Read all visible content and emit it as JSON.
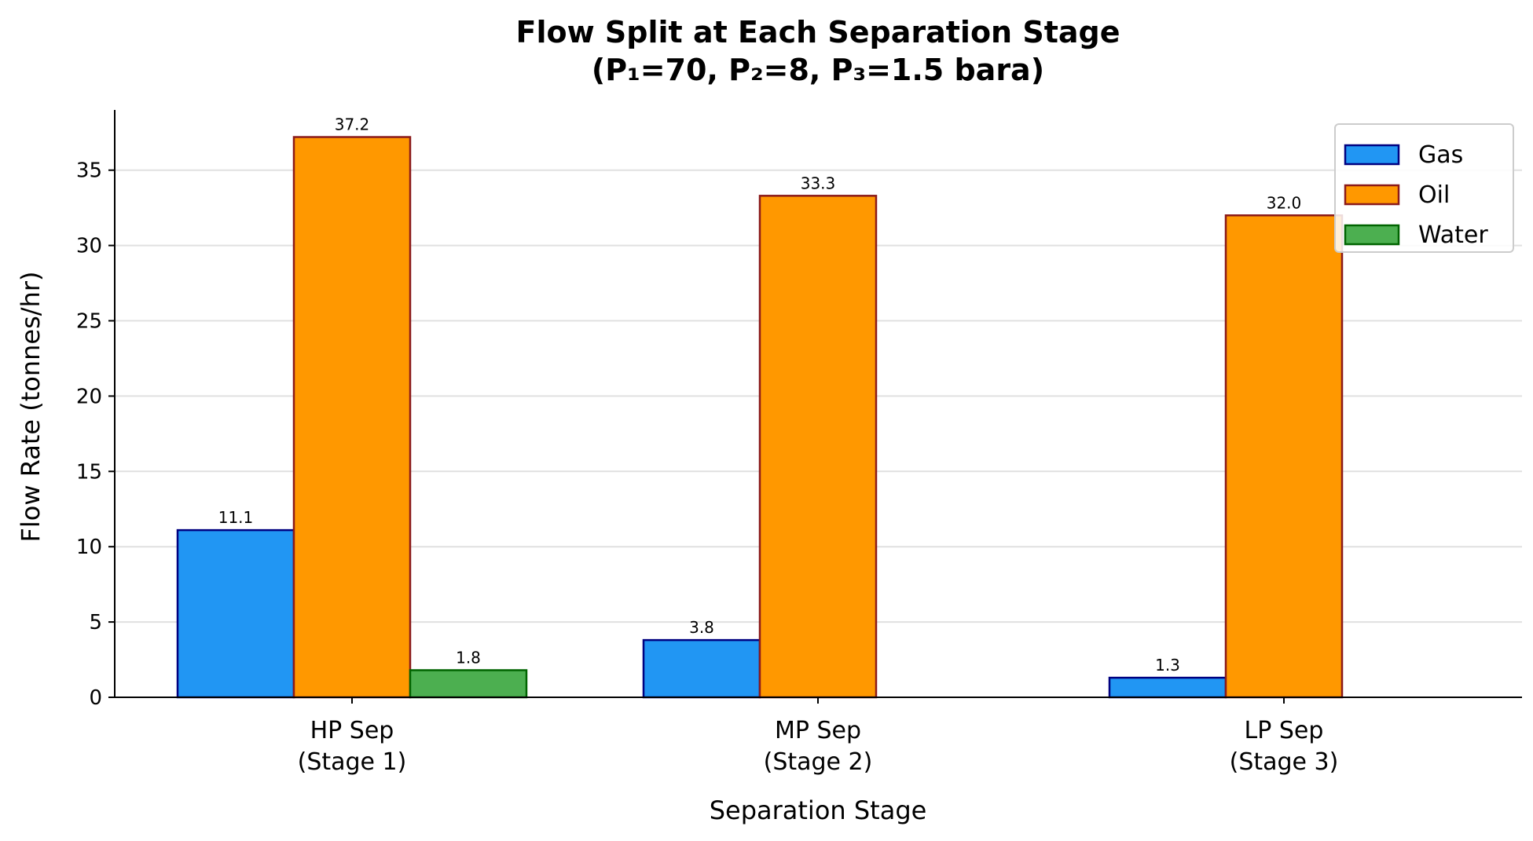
{
  "chart_data": {
    "type": "bar",
    "title": [
      "Flow Split at Each Separation Stage",
      "(P₁=70, P₂=8, P₃=1.5 bara)"
    ],
    "xlabel": "Separation Stage",
    "ylabel": "Flow Rate (tonnes/hr)",
    "categories": [
      [
        "HP Sep",
        "(Stage 1)"
      ],
      [
        "MP Sep",
        "(Stage 2)"
      ],
      [
        "LP Sep",
        "(Stage 3)"
      ]
    ],
    "ylim": [
      0,
      39
    ],
    "yticks": [
      0,
      5,
      10,
      15,
      20,
      25,
      30,
      35
    ],
    "grid": "y",
    "legend_position": "top-right",
    "series": [
      {
        "name": "Gas",
        "values": [
          11.1,
          3.8,
          1.3
        ],
        "labels": [
          "11.1",
          "3.8",
          "1.3"
        ],
        "color": "#2196F3",
        "edge": "#000080"
      },
      {
        "name": "Oil",
        "values": [
          37.2,
          33.3,
          32.0
        ],
        "labels": [
          "37.2",
          "33.3",
          "32.0"
        ],
        "color": "#FF9800",
        "edge": "#8B1A1A"
      },
      {
        "name": "Water",
        "values": [
          1.8,
          0,
          0
        ],
        "labels": [
          "1.8",
          null,
          null
        ],
        "color": "#4CAF50",
        "edge": "#006400"
      }
    ]
  }
}
